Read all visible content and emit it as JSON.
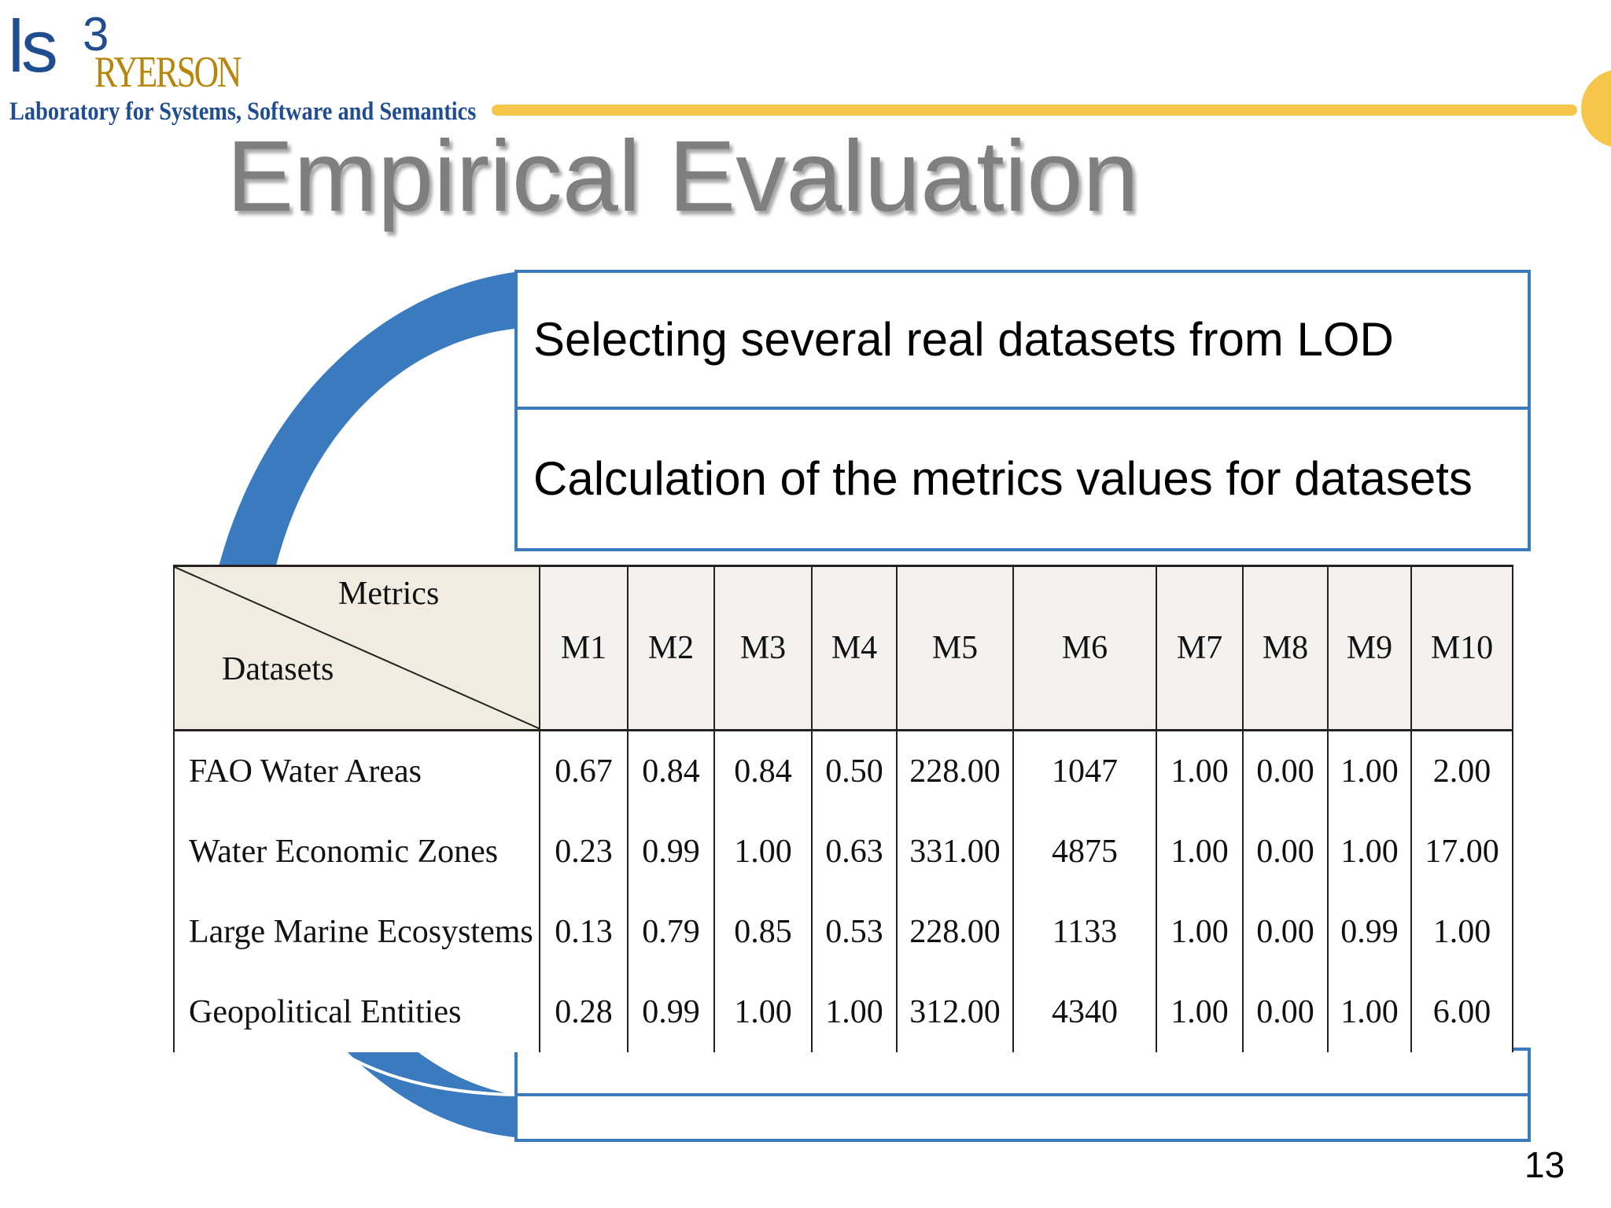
{
  "logo": {
    "mark": "ls",
    "superscript": "3",
    "name": "RYERSON",
    "tagline": "Laboratory for Systems, Software and Semantics"
  },
  "slide": {
    "title": "Empirical  Evaluation",
    "page_number": "13"
  },
  "steps": [
    {
      "text": "Selecting several real datasets from LOD"
    },
    {
      "text": "Calculation of the metrics values for datasets"
    },
    {
      "text": ""
    },
    {
      "text": ""
    }
  ],
  "table": {
    "corner_top": "Metrics",
    "corner_bottom": "Datasets",
    "columns": [
      "M1",
      "M2",
      "M3",
      "M4",
      "M5",
      "M6",
      "M7",
      "M8",
      "M9",
      "M10"
    ],
    "rows": [
      {
        "name": "FAO Water Areas",
        "values": [
          "0.67",
          "0.84",
          "0.84",
          "0.50",
          "228.00",
          "1047",
          "1.00",
          "0.00",
          "1.00",
          "2.00"
        ]
      },
      {
        "name": "Water Economic Zones",
        "values": [
          "0.23",
          "0.99",
          "1.00",
          "0.63",
          "331.00",
          "4875",
          "1.00",
          "0.00",
          "1.00",
          "17.00"
        ]
      },
      {
        "name": "Large Marine Ecosystems",
        "values": [
          "0.13",
          "0.79",
          "0.85",
          "0.53",
          "228.00",
          "1133",
          "1.00",
          "0.00",
          "0.99",
          "1.00"
        ]
      },
      {
        "name": "Geopolitical Entities",
        "values": [
          "0.28",
          "0.99",
          "1.00",
          "1.00",
          "312.00",
          "4340",
          "1.00",
          "0.00",
          "1.00",
          "6.00"
        ]
      }
    ]
  },
  "colors": {
    "accent_blue": "#3a7abf",
    "bar_yellow": "#f5c64a",
    "title_gray": "#7f7f7f"
  }
}
